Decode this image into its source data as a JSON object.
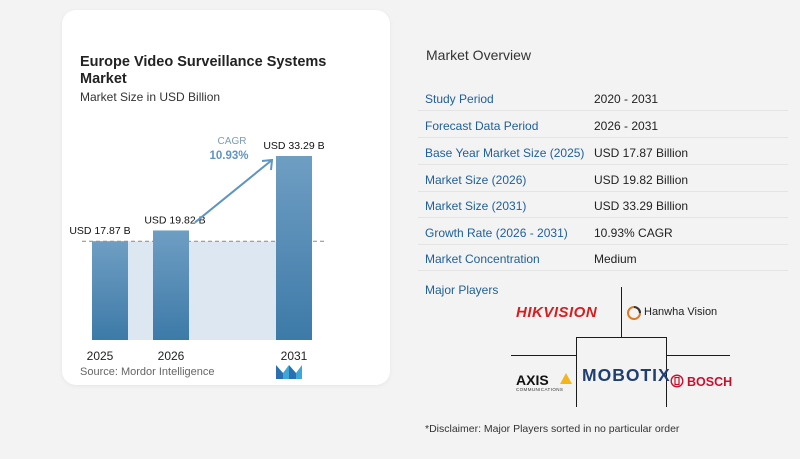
{
  "chart_card": {
    "title": "Europe Video Surveillance Systems Market",
    "subtitle": "Market Size in USD Billion",
    "source": "Source:  Mordor Intelligence"
  },
  "chart_data": {
    "type": "bar",
    "categories": [
      "2025",
      "2026",
      "2031"
    ],
    "values": [
      17.87,
      19.82,
      33.29
    ],
    "value_labels": [
      "USD 17.87 B",
      "USD 19.82 B",
      "USD 33.29 B"
    ],
    "annotation": {
      "label": "CAGR",
      "value": "10.93%"
    },
    "title": "Europe Video Surveillance Systems Market",
    "subtitle": "Market Size in USD Billion",
    "ylim": [
      0,
      35
    ],
    "grid": false,
    "colors": {
      "bar_top": "#6f9ec3",
      "bar_bottom": "#3d7aa8",
      "band": "#dde7f1",
      "arrow": "#5f95c1"
    }
  },
  "overview": {
    "title": "Market Overview",
    "rows": [
      {
        "key": "Study Period",
        "value": "2020 - 2031"
      },
      {
        "key": "Forecast Data Period",
        "value": "2026 - 2031"
      },
      {
        "key": "Base Year Market Size (2025)",
        "value": "USD 17.87 Billion"
      },
      {
        "key": "Market Size (2026)",
        "value": "USD 19.82 Billion"
      },
      {
        "key": "Market Size (2031)",
        "value": "USD 33.29 Billion"
      },
      {
        "key": "Growth Rate (2026 - 2031)",
        "value": "10.93% CAGR"
      },
      {
        "key": "Market Concentration",
        "value": "Medium"
      }
    ],
    "major_players_title": "Major Players",
    "players": [
      "HIKVISION",
      "Hanwha Vision",
      "AXIS",
      "COMMUNICATIONS",
      "MOBOTIX",
      "BOSCH"
    ],
    "disclaimer": "*Disclaimer: Major Players sorted in no particular order"
  }
}
